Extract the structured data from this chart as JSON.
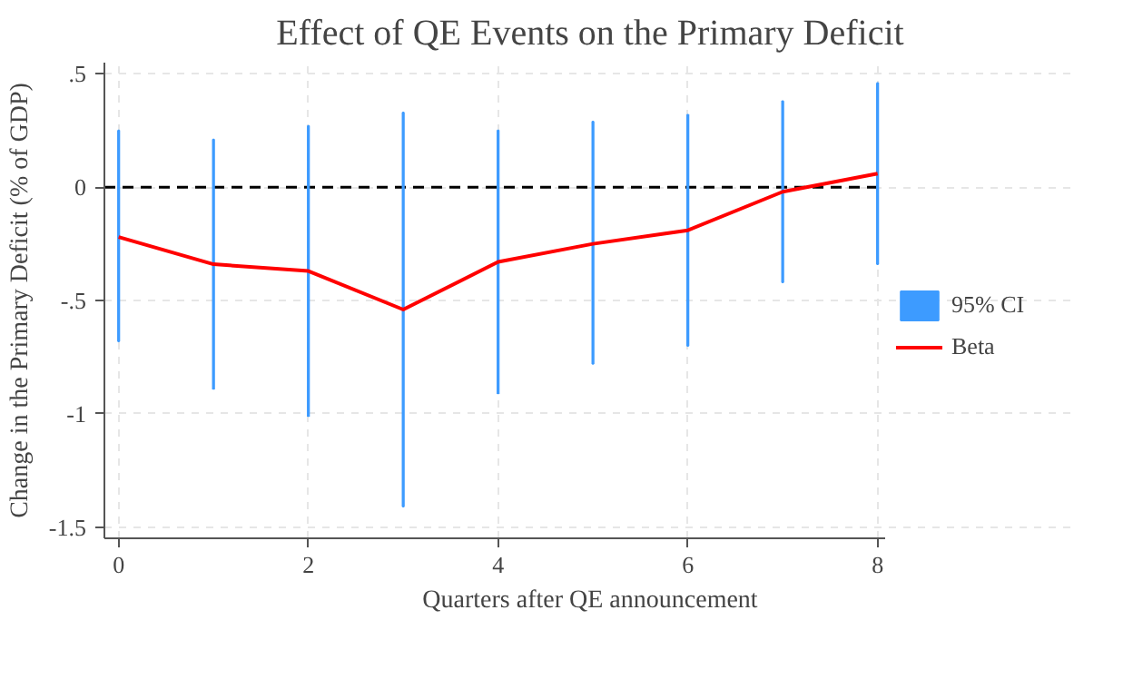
{
  "chart_data": {
    "type": "line",
    "title": "Effect of QE Events on the Primary Deficit",
    "xlabel": "Quarters after QE announcement",
    "ylabel": "Change in the Primary Deficit (% of GDP)",
    "x": [
      0,
      1,
      2,
      3,
      4,
      5,
      6,
      7,
      8
    ],
    "series": [
      {
        "name": "95% CI",
        "type": "bar",
        "color": "#3d9bff",
        "base": [
          -0.68,
          -0.89,
          -1.01,
          -1.41,
          -0.91,
          -0.78,
          -0.7,
          -0.42,
          -0.34
        ],
        "values": [
          0.93,
          1.1,
          1.28,
          1.74,
          1.16,
          1.07,
          1.02,
          0.8,
          0.8
        ]
      },
      {
        "name": "Beta",
        "color": "#ff0000",
        "values": [
          -0.22,
          -0.34,
          -0.37,
          -0.54,
          -0.33,
          -0.25,
          -0.19,
          -0.02,
          0.06
        ]
      }
    ],
    "xlim": [
      -0.15,
      8.08
    ],
    "ylim": [
      -1.55,
      0.55
    ],
    "xticks": [
      0,
      2,
      4,
      6,
      8
    ],
    "yticks": [
      {
        "value": -1.5,
        "label": "-1.5"
      },
      {
        "value": -1,
        "label": "-1"
      },
      {
        "value": -0.5,
        "label": "-.5"
      },
      0,
      {
        "value": 0.5,
        "label": ".5"
      }
    ],
    "ref_lines": [
      {
        "axis": "y",
        "value": 0,
        "color": "#000000",
        "line_style": "dashed"
      }
    ],
    "grid": true,
    "legend": "right"
  }
}
